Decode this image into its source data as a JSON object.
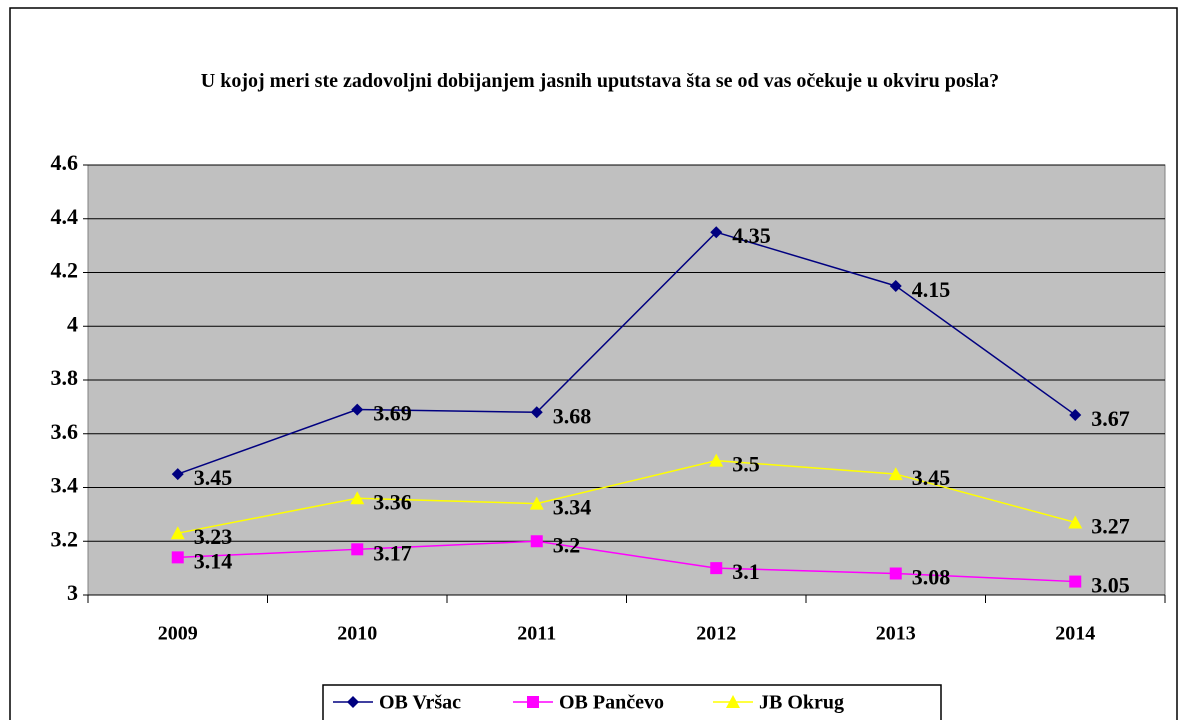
{
  "chart_data": {
    "type": "line",
    "title": "U kojoj meri ste zadovoljni dobijanjem jasnih uputstava šta se od vas očekuje u okviru posla?",
    "categories": [
      "2009",
      "2010",
      "2011",
      "2012",
      "2013",
      "2014"
    ],
    "series": [
      {
        "name": "OB Vršac",
        "color": "#000080",
        "marker": "diamond",
        "values": [
          3.45,
          3.69,
          3.68,
          4.35,
          4.15,
          3.67
        ]
      },
      {
        "name": "OB Pančevo",
        "color": "#ff00ff",
        "marker": "square",
        "values": [
          3.14,
          3.17,
          3.2,
          3.1,
          3.08,
          3.05
        ]
      },
      {
        "name": "JB Okrug",
        "color": "#ffff00",
        "marker": "triangle",
        "values": [
          3.23,
          3.36,
          3.34,
          3.5,
          3.45,
          3.27
        ]
      }
    ],
    "ylim": [
      3,
      4.6
    ],
    "yticks": [
      3,
      3.2,
      3.4,
      3.6,
      3.8,
      4,
      4.2,
      4.4,
      4.6
    ],
    "grid": true,
    "legend": "bottom"
  }
}
